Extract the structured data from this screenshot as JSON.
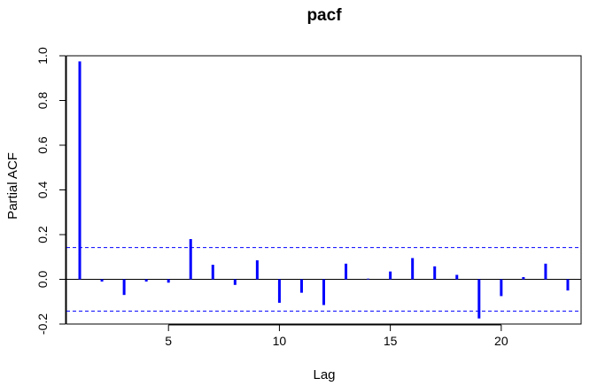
{
  "chart_data": {
    "type": "bar",
    "title": "pacf",
    "xlabel": "Lag",
    "ylabel": "Partial ACF",
    "x": [
      1,
      2,
      3,
      4,
      5,
      6,
      7,
      8,
      9,
      10,
      11,
      12,
      13,
      14,
      15,
      16,
      17,
      18,
      19,
      20,
      21,
      22,
      23
    ],
    "values": [
      0.975,
      -0.01,
      -0.07,
      -0.01,
      -0.015,
      0.18,
      0.065,
      -0.025,
      0.085,
      -0.105,
      -0.06,
      -0.115,
      0.07,
      0.003,
      0.035,
      0.095,
      0.058,
      0.02,
      -0.175,
      -0.075,
      0.01,
      0.07,
      -0.05
    ],
    "xlim": [
      0.4,
      23.6
    ],
    "ylim": [
      -0.2,
      1.0
    ],
    "x_ticks": [
      5,
      10,
      15,
      20
    ],
    "y_ticks": [
      -0.2,
      0.0,
      0.2,
      0.4,
      0.6,
      0.8,
      1.0
    ],
    "x_tick_labels": [
      "5",
      "10",
      "15",
      "20"
    ],
    "y_tick_labels": [
      "-0.2",
      "0.0",
      "0.2",
      "0.4",
      "0.6",
      "0.8",
      "1.0"
    ],
    "confidence_bounds": [
      0.142,
      -0.142
    ],
    "zero_line": 0.0,
    "grid": false,
    "colors": {
      "bars": "#0000ff",
      "bounds": "#0000ff",
      "axes": "#000000"
    }
  }
}
